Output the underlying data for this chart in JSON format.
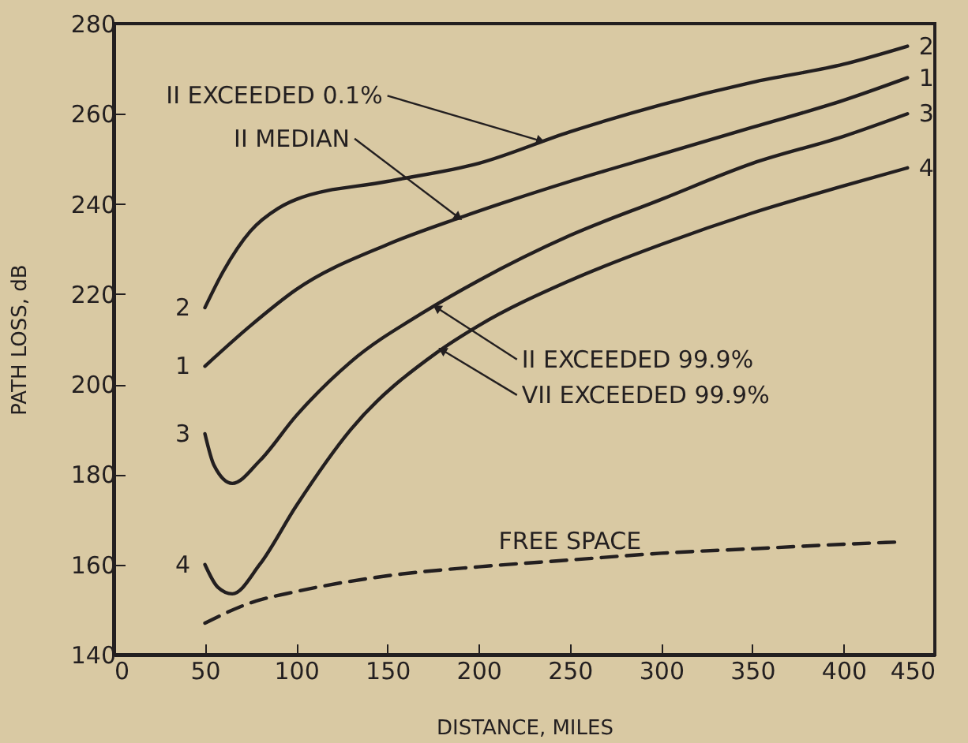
{
  "chart_data": {
    "type": "line",
    "xlabel": "DISTANCE, MILES",
    "ylabel": "PATH LOSS, dB",
    "xlim": [
      0,
      450
    ],
    "xticks": [
      0,
      50,
      100,
      150,
      200,
      250,
      300,
      350,
      400,
      450
    ],
    "ylim": [
      140,
      280
    ],
    "yticks": [
      140,
      160,
      180,
      200,
      220,
      240,
      260,
      280
    ],
    "grid": false,
    "marker": "none",
    "series": [
      {
        "name": "1",
        "color": "#231f20",
        "line_style": "solid",
        "x": [
          50,
          75,
          100,
          150,
          190,
          250,
          300,
          350,
          400,
          435
        ],
        "values": [
          204,
          213,
          221,
          231,
          237,
          245,
          251,
          257,
          263,
          268
        ]
      },
      {
        "name": "2",
        "color": "#231f20",
        "line_style": "solid",
        "x": [
          50,
          60,
          75,
          90,
          100,
          150,
          200,
          250,
          300,
          350,
          400,
          435
        ],
        "values": [
          217,
          225,
          234,
          239,
          241,
          245,
          249,
          256,
          262,
          267,
          271,
          275
        ]
      },
      {
        "name": "3",
        "color": "#231f20",
        "line_style": "solid",
        "x": [
          50,
          55,
          65,
          80,
          100,
          130,
          170,
          200,
          250,
          300,
          350,
          400,
          435
        ],
        "values": [
          189,
          182,
          178,
          183,
          193,
          205,
          216,
          223,
          233,
          241,
          249,
          255,
          260
        ]
      },
      {
        "name": "4",
        "color": "#231f20",
        "line_style": "solid",
        "x": [
          50,
          57,
          65,
          80,
          100,
          130,
          177,
          200,
          250,
          300,
          350,
          400,
          435
        ],
        "values": [
          160,
          155,
          153.5,
          160,
          173,
          190,
          207,
          213,
          223,
          231,
          238,
          244,
          248
        ]
      },
      {
        "name": "FREE SPACE",
        "color": "#231f20",
        "line_style": "dashed",
        "x": [
          50,
          75,
          100,
          150,
          200,
          250,
          300,
          350,
          400,
          430
        ],
        "values": [
          147,
          151.5,
          154,
          157.5,
          159.5,
          161,
          162.5,
          163.5,
          164.5,
          165
        ]
      }
    ],
    "annotations": [
      {
        "text": "II EXCEEDED 0.1%",
        "x": 234,
        "y": 254
      },
      {
        "text": "II MEDIAN",
        "x": 189,
        "y": 237
      },
      {
        "text": "II EXCEEDED 99.9%",
        "x": 177,
        "y": 217
      },
      {
        "text": "VII EXCEEDED 99.9%",
        "x": 180,
        "y": 207.6
      }
    ]
  }
}
